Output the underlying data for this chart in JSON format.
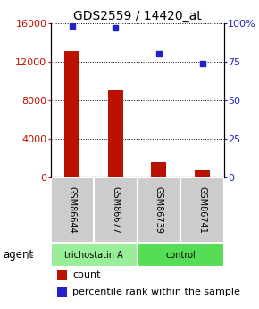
{
  "title": "GDS2559 / 14420_at",
  "samples": [
    "GSM86644",
    "GSM86677",
    "GSM86739",
    "GSM86741"
  ],
  "counts": [
    13100,
    9000,
    1550,
    750
  ],
  "percentiles": [
    98,
    97,
    80,
    74
  ],
  "bar_color": "#bb1100",
  "dot_color": "#2222cc",
  "left_yticks": [
    0,
    4000,
    8000,
    12000,
    16000
  ],
  "right_yticks": [
    0,
    25,
    50,
    75,
    100
  ],
  "right_ytick_labels": [
    "0",
    "25",
    "50",
    "75",
    "100%"
  ],
  "ylim_left": [
    0,
    16000
  ],
  "ylim_right": [
    0,
    100
  ],
  "agent_groups": [
    {
      "label": "trichostatin A",
      "indices": [
        0,
        1
      ],
      "color": "#99ee99"
    },
    {
      "label": "control",
      "indices": [
        2,
        3
      ],
      "color": "#55dd55"
    }
  ],
  "legend_count_label": "count",
  "legend_pct_label": "percentile rank within the sample",
  "agent_label": "agent",
  "sample_box_color": "#cccccc",
  "title_fontsize": 10,
  "tick_fontsize": 8,
  "sample_fontsize": 7,
  "legend_fontsize": 8,
  "agent_fontsize": 8.5
}
